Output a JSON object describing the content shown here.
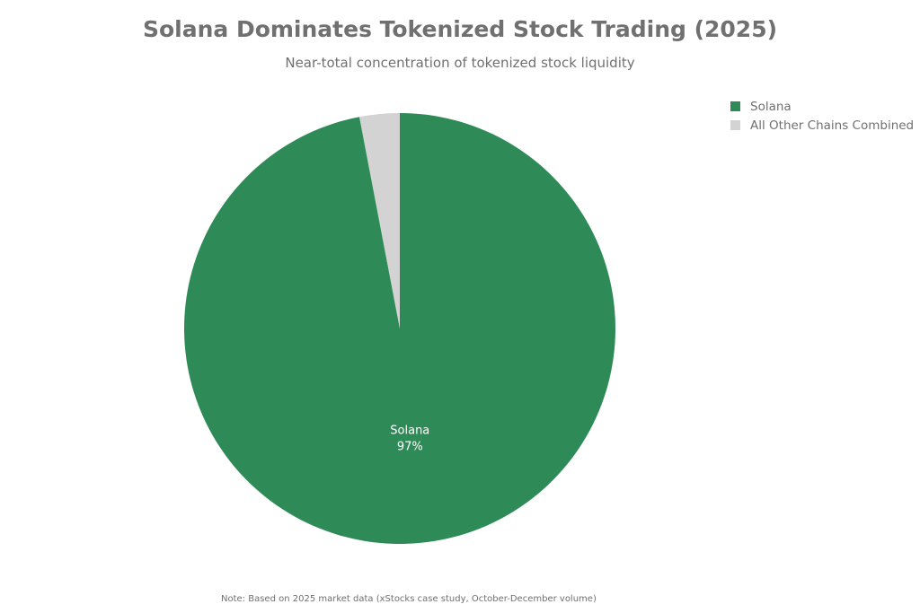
{
  "chart_data": {
    "type": "pie",
    "title": "Solana Dominates Tokenized Stock Trading (2025)",
    "subtitle": "Near-total concentration of tokenized stock liquidity",
    "slices": [
      {
        "label": "Solana",
        "value": 97,
        "display": "97%",
        "color": "#2e8b57"
      },
      {
        "label": "All Other Chains Combined",
        "value": 3,
        "display": "3%",
        "color": "#d3d3d3"
      }
    ],
    "legend": {
      "position": "top-right",
      "entries": [
        "Solana",
        "All Other Chains Combined"
      ]
    },
    "note": "Note: Based on 2025 market data (xStocks case study, October-December volume)"
  }
}
